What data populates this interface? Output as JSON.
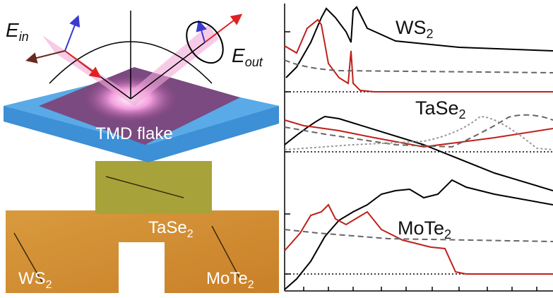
{
  "labels": {
    "e_in": {
      "base": "E",
      "sub": "in"
    },
    "e_out": {
      "base": "E",
      "sub": "out"
    },
    "flake": "TMD flake",
    "photo_tase2": {
      "base": "TaSe",
      "sub": "2"
    },
    "photo_ws2": {
      "base": "WS",
      "sub": "2"
    },
    "photo_mote2": {
      "base": "MoTe",
      "sub": "2"
    }
  },
  "panels": [
    {
      "base": "WS",
      "sub": "2"
    },
    {
      "base": "TaSe",
      "sub": "2"
    },
    {
      "base": "MoTe",
      "sub": "2"
    }
  ]
}
